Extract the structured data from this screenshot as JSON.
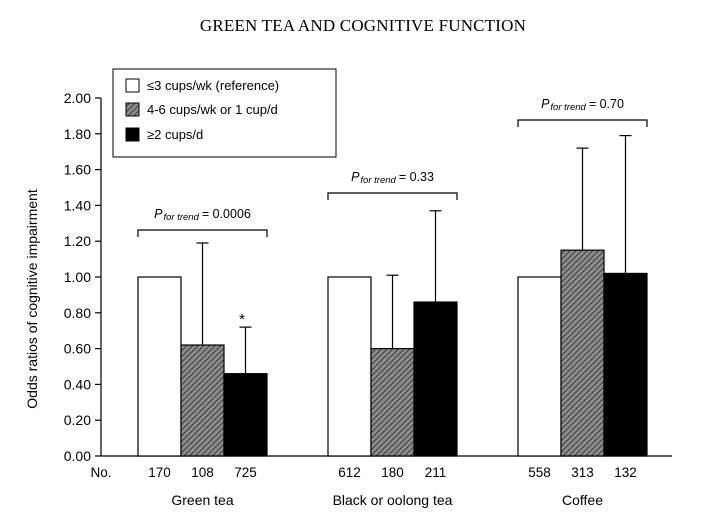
{
  "chart_data": {
    "type": "bar",
    "title": "GREEN TEA AND COGNITIVE FUNCTION",
    "ylabel": "Odds ratios of cognitive impairment",
    "ylim": [
      0,
      2.0
    ],
    "yticks": [
      "0.00",
      "0.20",
      "0.40",
      "0.60",
      "0.80",
      "1.00",
      "1.20",
      "1.40",
      "1.60",
      "1.80",
      "2.00"
    ],
    "grid": false,
    "legend_position": "top-left",
    "categories": [
      "Green tea",
      "Black or oolong tea",
      "Coffee"
    ],
    "series": [
      {
        "name": "≤3 cups/wk (reference)",
        "fill": "white",
        "values": [
          1.0,
          1.0,
          1.0
        ],
        "ci_upper": [
          null,
          null,
          null
        ]
      },
      {
        "name": "4-6 cups/wk or 1 cup/d",
        "fill": "hatched-gray",
        "values": [
          0.62,
          0.6,
          1.15
        ],
        "ci_upper": [
          1.19,
          1.01,
          1.72
        ]
      },
      {
        "name": "≥2 cups/d",
        "fill": "black",
        "values": [
          0.46,
          0.86,
          1.02
        ],
        "ci_upper": [
          0.72,
          1.37,
          1.79
        ]
      }
    ],
    "counts_label": "No.",
    "counts": [
      [
        "170",
        "108",
        "725"
      ],
      [
        "612",
        "180",
        "211"
      ],
      [
        "558",
        "313",
        "132"
      ]
    ],
    "significance_marker": "*",
    "p_trend": [
      {
        "p_text": "P",
        "sub_text": "for trend",
        "value_text": "= 0.0006"
      },
      {
        "p_text": "P",
        "sub_text": "for trend",
        "value_text": "= 0.33"
      },
      {
        "p_text": "P",
        "sub_text": "for trend",
        "value_text": "= 0.70"
      }
    ],
    "colors": {
      "axis": "#000000",
      "white_bar": "#ffffff",
      "black_bar": "#000000",
      "hatch_bg": "#8c8c8c",
      "hatch_line": "#3a3a3a"
    }
  }
}
